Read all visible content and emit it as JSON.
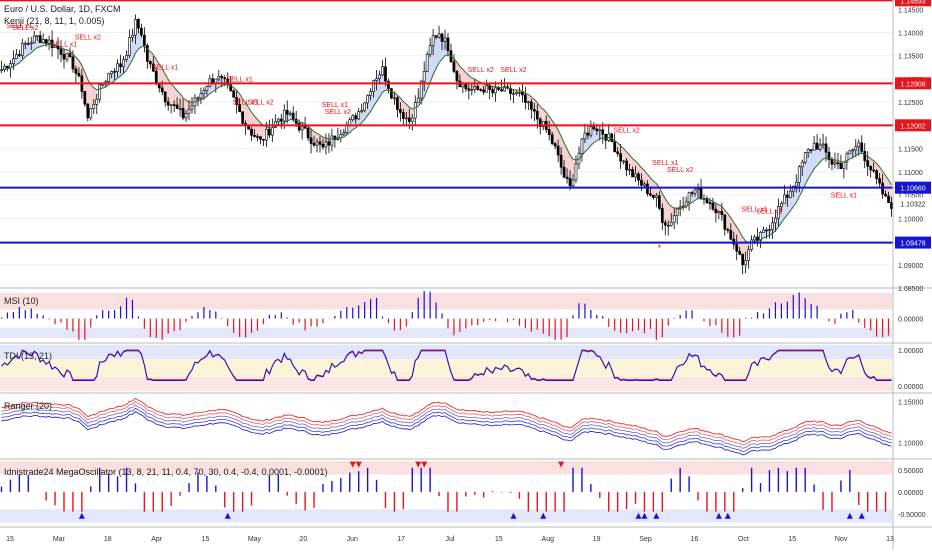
{
  "header": {
    "symbol": "Euro / U.S. Dollar, 1D, FXCM",
    "indicator": "Kenji (21, 8, 11, 1, 0.005)"
  },
  "colors": {
    "red_line": "#e8141c",
    "blue_line": "#1414d4",
    "bull_fill": "#ffffff",
    "bear_fill": "#000000",
    "wick": "#000000",
    "ema": "#2f6b2f",
    "cloud_bear": "#f4c9c9",
    "cloud_bull": "#c9d3f4",
    "sell_label": "#e8141c",
    "pane_red": "#f8d3d3",
    "pane_blue": "#d8dcf8",
    "pane_yellow": "#fbf4d8",
    "tag_blue": "#0c0cb8"
  },
  "chart_data": [
    {
      "type": "candlestick",
      "pane": "price",
      "title": "Euro / U.S. Dollar, 1D, FXCM",
      "ylim": [
        1.085,
        1.147
      ],
      "y_ticks": [
        "1.14500",
        "1.14000",
        "1.13500",
        "1.13000",
        "1.12500",
        "1.12000",
        "1.11500",
        "1.11000",
        "1.10500",
        "1.10000",
        "1.09500",
        "1.09000",
        "1.08500"
      ],
      "x_ticks": [
        "15",
        "Mar",
        "18",
        "Apr",
        "15",
        "May",
        "20",
        "Jun",
        "17",
        "Jul",
        "15",
        "Aug",
        "19",
        "Sep",
        "16",
        "Oct",
        "15",
        "Nov",
        "13"
      ],
      "hlines": [
        {
          "value": 1.14693,
          "label": "1.14693",
          "color": "red"
        },
        {
          "value": 1.12906,
          "label": "1.12906",
          "color": "red"
        },
        {
          "value": 1.12002,
          "label": "1.12002",
          "color": "red"
        },
        {
          "value": 1.1066,
          "label": "1.10660",
          "color": "blue"
        },
        {
          "value": 1.09478,
          "label": "1.09478",
          "color": "blue"
        }
      ],
      "current_price": {
        "value": 1.10322,
        "label": "1.10322"
      },
      "close_path": [
        [
          0,
          1.132
        ],
        [
          4,
          1.1345
        ],
        [
          8,
          1.1375
        ],
        [
          12,
          1.139
        ],
        [
          16,
          1.138
        ],
        [
          20,
          1.136
        ],
        [
          24,
          1.133
        ],
        [
          27,
          1.128
        ],
        [
          29,
          1.1215
        ],
        [
          31,
          1.125
        ],
        [
          34,
          1.129
        ],
        [
          37,
          1.132
        ],
        [
          40,
          1.133
        ],
        [
          42,
          1.136
        ],
        [
          45,
          1.142
        ],
        [
          47,
          1.14
        ],
        [
          49,
          1.134
        ],
        [
          52,
          1.13
        ],
        [
          55,
          1.126
        ],
        [
          58,
          1.124
        ],
        [
          61,
          1.122
        ],
        [
          63,
          1.1235
        ],
        [
          66,
          1.126
        ],
        [
          69,
          1.129
        ],
        [
          72,
          1.1305
        ],
        [
          75,
          1.129
        ],
        [
          78,
          1.1255
        ],
        [
          81,
          1.1215
        ],
        [
          84,
          1.1185
        ],
        [
          87,
          1.1165
        ],
        [
          90,
          1.119
        ],
        [
          93,
          1.1215
        ],
        [
          96,
          1.1225
        ],
        [
          99,
          1.1205
        ],
        [
          102,
          1.1185
        ],
        [
          105,
          1.1165
        ],
        [
          108,
          1.115
        ],
        [
          111,
          1.117
        ],
        [
          114,
          1.119
        ],
        [
          117,
          1.1205
        ],
        [
          120,
          1.123
        ],
        [
          123,
          1.1265
        ],
        [
          125,
          1.13
        ],
        [
          128,
          1.132
        ],
        [
          131,
          1.127
        ],
        [
          134,
          1.123
        ],
        [
          137,
          1.121
        ],
        [
          140,
          1.126
        ],
        [
          142,
          1.132
        ],
        [
          145,
          1.139
        ],
        [
          147,
          1.14
        ],
        [
          150,
          1.137
        ],
        [
          153,
          1.13
        ],
        [
          156,
          1.128
        ],
        [
          159,
          1.1275
        ],
        [
          162,
          1.128
        ],
        [
          165,
          1.127
        ],
        [
          168,
          1.1275
        ],
        [
          171,
          1.127
        ],
        [
          174,
          1.1265
        ],
        [
          177,
          1.124
        ],
        [
          180,
          1.1215
        ],
        [
          183,
          1.119
        ],
        [
          186,
          1.115
        ],
        [
          189,
          1.109
        ],
        [
          191,
          1.1065
        ],
        [
          193,
          1.112
        ],
        [
          196,
          1.118
        ],
        [
          199,
          1.12
        ],
        [
          202,
          1.1185
        ],
        [
          205,
          1.1165
        ],
        [
          208,
          1.113
        ],
        [
          211,
          1.11
        ],
        [
          214,
          1.108
        ],
        [
          217,
          1.106
        ],
        [
          220,
          1.104
        ],
        [
          222,
          1.1
        ],
        [
          224,
          1.0985
        ],
        [
          227,
          1.102
        ],
        [
          230,
          1.1045
        ],
        [
          233,
          1.106
        ],
        [
          236,
          1.1045
        ],
        [
          239,
          1.103
        ],
        [
          242,
          1.1
        ],
        [
          245,
          1.096
        ],
        [
          247,
          1.0935
        ],
        [
          249,
          1.09
        ],
        [
          252,
          1.0945
        ],
        [
          255,
          1.096
        ],
        [
          258,
          1.0985
        ],
        [
          261,
          1.102
        ],
        [
          264,
          1.105
        ],
        [
          267,
          1.1085
        ],
        [
          270,
          1.1135
        ],
        [
          273,
          1.116
        ],
        [
          276,
          1.115
        ],
        [
          279,
          1.112
        ],
        [
          282,
          1.1115
        ],
        [
          285,
          1.114
        ],
        [
          288,
          1.116
        ],
        [
          291,
          1.112
        ],
        [
          294,
          1.108
        ],
        [
          297,
          1.104
        ],
        [
          299,
          1.103
        ]
      ],
      "series": [
        {
          "name": "",
          "kind": "ema",
          "color": "#2f6b2f"
        }
      ],
      "annotations": [
        {
          "text": "SELL x1",
          "x": 6,
          "y": 1.141
        },
        {
          "text": "SELL x2",
          "x": 8,
          "y": 1.1405
        },
        {
          "text": "SELL x1",
          "x": 21,
          "y": 1.137
        },
        {
          "text": "SELL x2",
          "x": 29,
          "y": 1.1385
        },
        {
          "text": "SELL x1",
          "x": 55,
          "y": 1.132
        },
        {
          "text": "SELL x1",
          "x": 80,
          "y": 1.1295
        },
        {
          "text": "SELL x1",
          "x": 82,
          "y": 1.1245
        },
        {
          "text": "SELL x2",
          "x": 87,
          "y": 1.1245
        },
        {
          "text": "SELL x1",
          "x": 112,
          "y": 1.124
        },
        {
          "text": "SELL x2",
          "x": 113,
          "y": 1.1225
        },
        {
          "text": "SELL x2",
          "x": 161,
          "y": 1.1315
        },
        {
          "text": "SELL x2",
          "x": 172,
          "y": 1.1315
        },
        {
          "text": "SELL x2",
          "x": 210,
          "y": 1.1185
        },
        {
          "text": "SELL x1",
          "x": 223,
          "y": 1.1115
        },
        {
          "text": "SELL x2",
          "x": 228,
          "y": 1.11
        },
        {
          "text": "SELL x1",
          "x": 253,
          "y": 1.1015
        },
        {
          "text": "SELL x1",
          "x": 258,
          "y": 1.101
        },
        {
          "text": "SELL x1",
          "x": 283,
          "y": 1.1045
        }
      ],
      "markers": [
        {
          "text": "*",
          "x": 221,
          "y": 1.093
        }
      ]
    },
    {
      "type": "histogram",
      "pane": "msi",
      "title": "MSI (10)",
      "ylim": [
        -0.4,
        0.5
      ],
      "y_ticks": [
        "0.00000"
      ]
    },
    {
      "type": "line",
      "pane": "tdi",
      "title": "TDI (13, 21)",
      "ylim": [
        -0.2,
        1.2
      ],
      "y_ticks": [
        "1.00000",
        "0.00000"
      ]
    },
    {
      "type": "band",
      "pane": "ranger",
      "title": "Ranger (20)",
      "ylim": [
        1.08,
        1.16
      ],
      "y_ticks": [
        "1.15000",
        "1.10000"
      ]
    },
    {
      "type": "histogram",
      "pane": "mega",
      "title": "Idnistrade24 MegaOscillator (13, 8, 21, 11, 0.4, 70, 30, 0.4, -0.4, 0.0001, -0.0001)",
      "ylim": [
        -0.8,
        0.75
      ],
      "y_ticks": [
        "0.50000",
        "0.00000",
        "-0.50000"
      ]
    }
  ]
}
